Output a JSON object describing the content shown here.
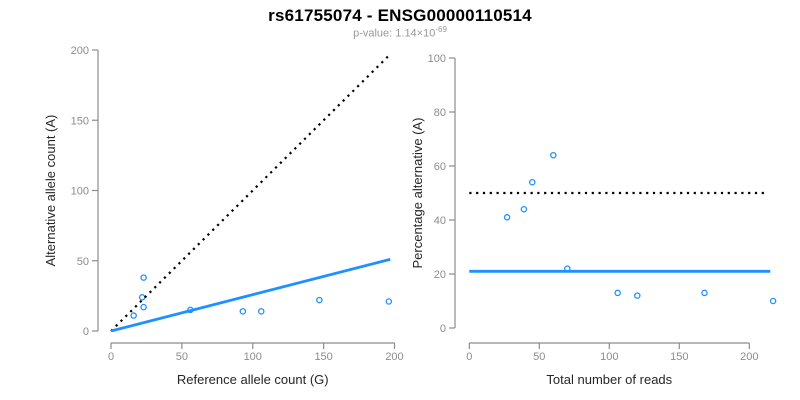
{
  "header": {
    "title": "rs61755074 - ENSG00000110514",
    "pvalue_prefix": "p-value: 1.14×10",
    "pvalue_exponent": "-69"
  },
  "colors": {
    "accent_blue": "#1E90FF",
    "line_black": "#000000",
    "axis_gray": "#8C8C8C",
    "tick_label_gray": "#8C8C8C",
    "axis_title_color": "#262626",
    "title_color": "#000000",
    "subtitle_gray": "#999999",
    "background": "#FFFFFF"
  },
  "chart_data": [
    {
      "type": "scatter",
      "panel": "left",
      "title": "",
      "xlabel": "Reference allele count (G)",
      "ylabel": "Alternative allele count (A)",
      "xlim": [
        0,
        200
      ],
      "ylim": [
        0,
        200
      ],
      "xticks": [
        0,
        50,
        100,
        150,
        200
      ],
      "yticks": [
        0,
        50,
        100,
        150,
        200
      ],
      "grid": false,
      "legend": null,
      "points": [
        [
          16,
          11
        ],
        [
          22,
          24
        ],
        [
          23,
          17
        ],
        [
          23,
          38
        ],
        [
          56,
          15
        ],
        [
          93,
          14
        ],
        [
          106,
          14
        ],
        [
          147,
          22
        ],
        [
          196,
          21
        ]
      ],
      "lines": [
        {
          "name": "identity-line",
          "style": "dotted",
          "color_key": "line_black",
          "x1": 0,
          "y1": 0,
          "x2": 196,
          "y2": 196
        },
        {
          "name": "fit-line",
          "style": "solid",
          "color_key": "accent_blue",
          "x1": 0,
          "y1": 0,
          "x2": 197,
          "y2": 51
        }
      ]
    },
    {
      "type": "scatter",
      "panel": "right",
      "title": "",
      "xlabel": "Total number of reads",
      "ylabel": "Percentage alternative (A)",
      "xlim": [
        0,
        217
      ],
      "ylim": [
        0,
        100
      ],
      "xticks": [
        0,
        50,
        100,
        150,
        200
      ],
      "yticks": [
        0,
        20,
        40,
        60,
        80,
        100
      ],
      "grid": false,
      "legend": null,
      "points": [
        [
          27,
          41
        ],
        [
          39,
          44
        ],
        [
          45,
          54
        ],
        [
          60,
          64
        ],
        [
          70,
          22
        ],
        [
          106,
          13
        ],
        [
          120,
          12
        ],
        [
          168,
          13
        ],
        [
          217,
          10
        ]
      ],
      "lines": [
        {
          "name": "fifty-percent-line",
          "style": "dotted",
          "color_key": "line_black",
          "x1": 0,
          "y1": 50,
          "x2": 213,
          "y2": 50
        },
        {
          "name": "mean-percentage-line",
          "style": "solid",
          "color_key": "accent_blue",
          "x1": 0,
          "y1": 21,
          "x2": 215,
          "y2": 21
        }
      ]
    }
  ]
}
